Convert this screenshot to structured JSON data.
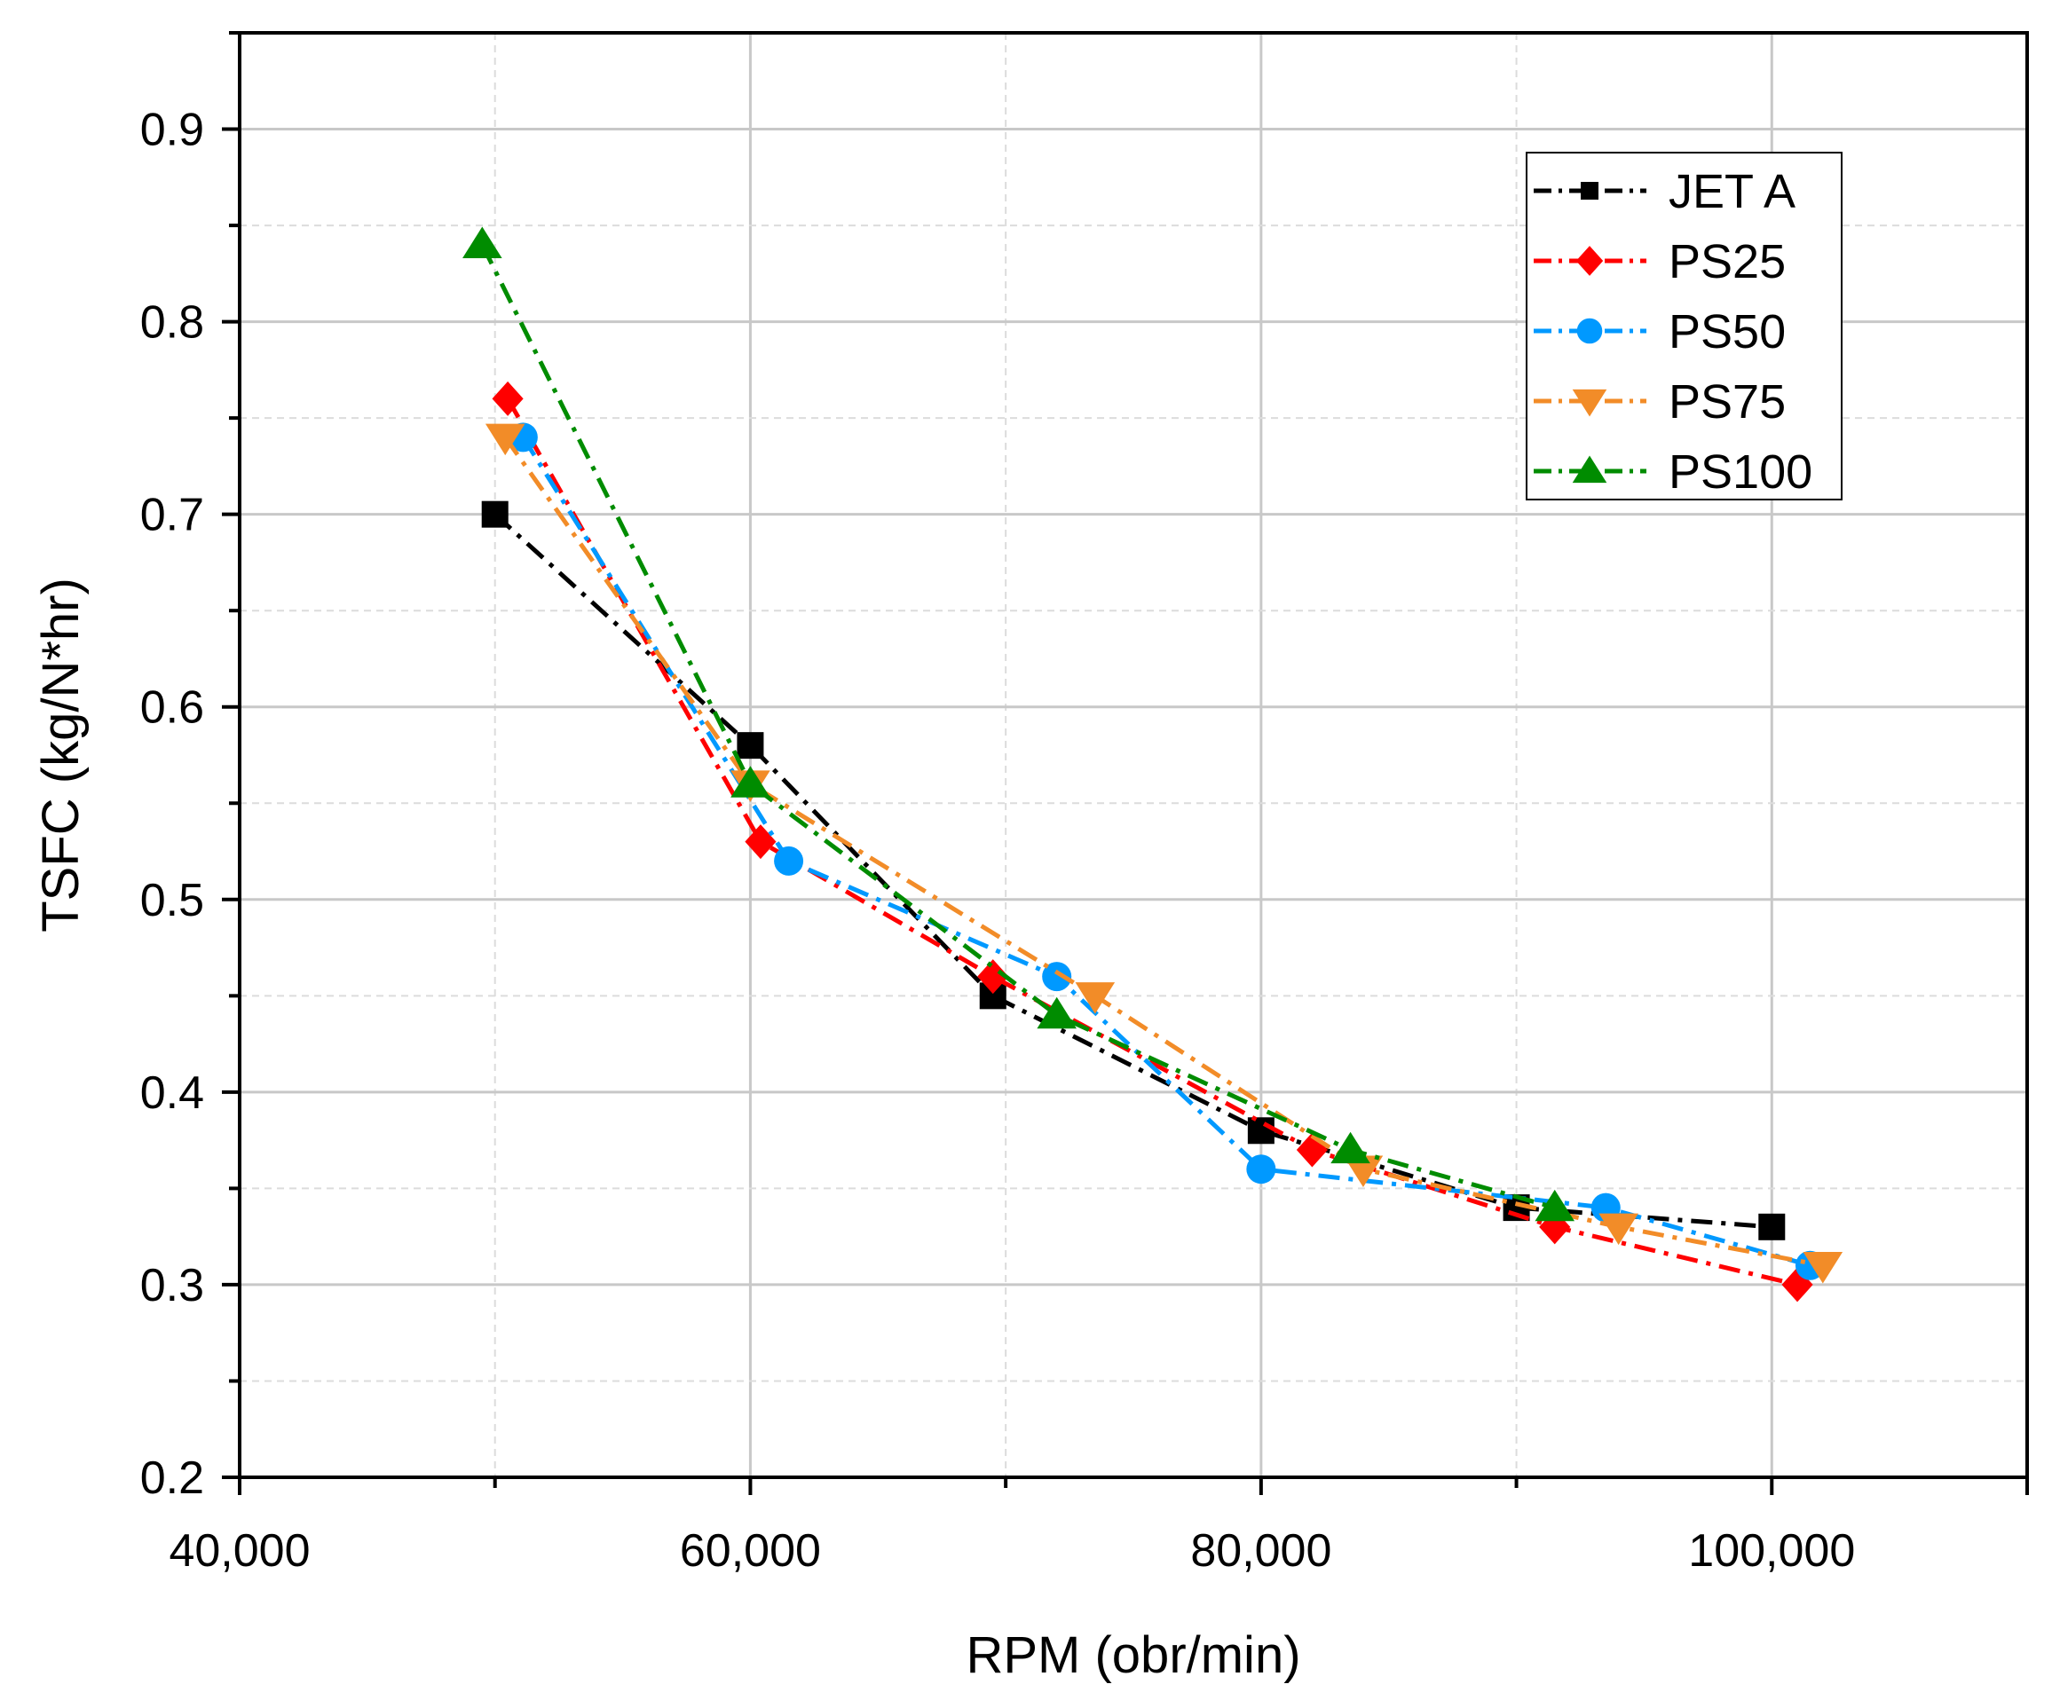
{
  "chart_data": {
    "type": "line",
    "title": "",
    "xlabel": "RPM (obr/min)",
    "ylabel": "TSFC (kg/N*hr)",
    "xlim": [
      40000,
      110000
    ],
    "ylim": [
      0.2,
      0.95
    ],
    "xticks": [
      40000,
      60000,
      80000,
      100000
    ],
    "xtick_labels": [
      "40,000",
      "60,000",
      "80,000",
      "100,000"
    ],
    "yticks": [
      0.2,
      0.3,
      0.4,
      0.5,
      0.6,
      0.7,
      0.8,
      0.9
    ],
    "ytick_labels": [
      "0.2",
      "0.3",
      "0.4",
      "0.5",
      "0.6",
      "0.7",
      "0.8",
      "0.9"
    ],
    "grid": true,
    "legend_position": "top-right",
    "series": [
      {
        "name": "JET A",
        "color": "#000000",
        "marker": "square",
        "x": [
          50000,
          60000,
          69500,
          80000,
          90000,
          100000
        ],
        "y": [
          0.7,
          0.58,
          0.45,
          0.38,
          0.34,
          0.33
        ]
      },
      {
        "name": "PS25",
        "color": "#ff0000",
        "marker": "diamond",
        "x": [
          50500,
          60400,
          69500,
          82000,
          91500,
          101000
        ],
        "y": [
          0.76,
          0.53,
          0.46,
          0.37,
          0.33,
          0.3
        ]
      },
      {
        "name": "PS50",
        "color": "#0099ff",
        "marker": "circle",
        "x": [
          51100,
          61500,
          72000,
          80000,
          93500,
          101500
        ],
        "y": [
          0.74,
          0.52,
          0.46,
          0.36,
          0.34,
          0.31
        ]
      },
      {
        "name": "PS75",
        "color": "#f28c28",
        "marker": "triangle-down",
        "x": [
          50400,
          60000,
          73500,
          84000,
          94000,
          102000
        ],
        "y": [
          0.74,
          0.56,
          0.45,
          0.36,
          0.33,
          0.31
        ]
      },
      {
        "name": "PS100",
        "color": "#008c00",
        "marker": "triangle-up",
        "x": [
          49500,
          60000,
          72000,
          83500,
          91500
        ],
        "y": [
          0.84,
          0.56,
          0.44,
          0.37,
          0.34
        ]
      }
    ]
  }
}
